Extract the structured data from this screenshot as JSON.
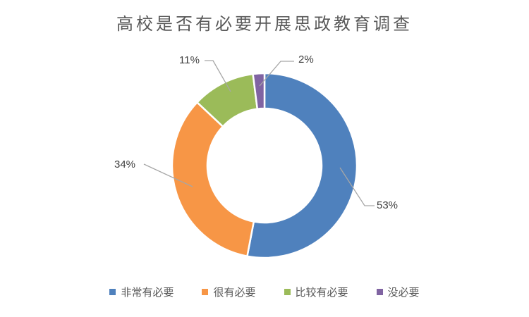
{
  "chart_data": {
    "type": "pie",
    "subtype": "doughnut",
    "title": "高校是否有必要开展思政教育调查",
    "categories": [
      "非常有必要",
      "很有必要",
      "比较有必要",
      "没必要"
    ],
    "values": [
      53,
      34,
      11,
      2
    ],
    "labels": [
      "53%",
      "34%",
      "11%",
      "2%"
    ],
    "colors": [
      "#4F81BD",
      "#F79646",
      "#9BBB59",
      "#8064A2"
    ],
    "start_angle_deg": 0,
    "direction": "clockwise",
    "hole_ratio": 0.62,
    "legend_position": "bottom",
    "grid": "off",
    "background": "#FFFFFF",
    "title_color": "#595959",
    "data_label_color": "#404040",
    "legend_text_color": "#595959",
    "leader_line_color": "#A6A6A6",
    "slice_border_color": "#FFFFFF"
  }
}
